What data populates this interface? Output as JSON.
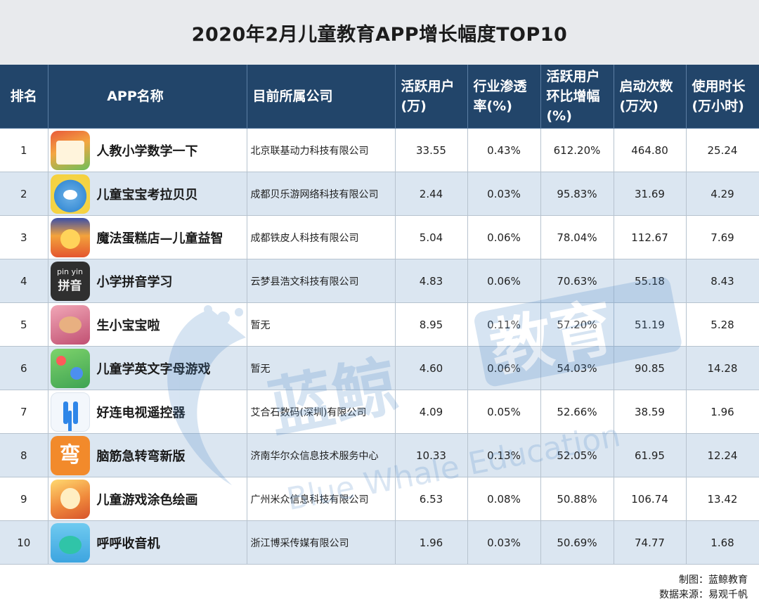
{
  "title": "2020年2月儿童教育APP增长幅度TOP10",
  "headers": {
    "rank": "排名",
    "app_name": "APP名称",
    "company": "目前所属公司",
    "active_users_l1": "活跃用户",
    "active_users_l2": "(万)",
    "penetration_l1": "行业渗透",
    "penetration_l2": "率(%)",
    "growth_l1": "活跃用户",
    "growth_l2": "环比增幅",
    "growth_l3": "(%)",
    "launches_l1": "启动次数",
    "launches_l2": "(万次)",
    "usage_l1": "使用时长",
    "usage_l2": "(万小时)"
  },
  "rows": [
    {
      "rank": "1",
      "app": "人教小学数学一下",
      "icon": "math-textbook-icon",
      "company": "北京联基动力科技有限公司",
      "active_users": "33.55",
      "penetration": "0.43%",
      "growth": "612.20%",
      "launches": "464.80",
      "usage": "25.24"
    },
    {
      "rank": "2",
      "app": "儿童宝宝考拉贝贝",
      "icon": "koala-cartoon-icon",
      "company": "成都贝乐游网络科技有限公司",
      "active_users": "2.44",
      "penetration": "0.03%",
      "growth": "95.83%",
      "launches": "31.69",
      "usage": "4.29"
    },
    {
      "rank": "3",
      "app": "魔法蛋糕店—儿童益智",
      "icon": "cake-shop-icon",
      "company": "成都铁皮人科技有限公司",
      "active_users": "5.04",
      "penetration": "0.06%",
      "growth": "78.04%",
      "launches": "112.67",
      "usage": "7.69"
    },
    {
      "rank": "4",
      "app": "小学拼音学习",
      "icon": "pinyin-blackboard-icon",
      "icon_text_top": "pin yin",
      "icon_text_main": "拼音",
      "company": "云梦县浩文科技有限公司",
      "active_users": "4.83",
      "penetration": "0.06%",
      "growth": "70.63%",
      "launches": "55.18",
      "usage": "8.43"
    },
    {
      "rank": "5",
      "app": "生小宝宝啦",
      "icon": "baby-icon",
      "company": "暂无",
      "active_users": "8.95",
      "penetration": "0.11%",
      "growth": "57.20%",
      "launches": "51.19",
      "usage": "5.28"
    },
    {
      "rank": "6",
      "app": "儿童学英文字母游戏",
      "icon": "alphabet-bubbles-icon",
      "company": "暂无",
      "active_users": "4.60",
      "penetration": "0.06%",
      "growth": "54.03%",
      "launches": "90.85",
      "usage": "14.28"
    },
    {
      "rank": "7",
      "app": "好连电视遥控器",
      "icon": "h-logo-icon",
      "company": "艾合石数码(深圳)有限公司",
      "active_users": "4.09",
      "penetration": "0.05%",
      "growth": "52.66%",
      "launches": "38.59",
      "usage": "1.96"
    },
    {
      "rank": "8",
      "app": "脑筋急转弯新版",
      "icon": "brain-teaser-icon",
      "icon_text_main": "弯",
      "company": "济南华尔众信息技术服务中心",
      "active_users": "10.33",
      "penetration": "0.13%",
      "growth": "52.05%",
      "launches": "61.95",
      "usage": "12.24"
    },
    {
      "rank": "9",
      "app": "儿童游戏涂色绘画",
      "icon": "coloring-cartoon-icon",
      "company": "广州米众信息科技有限公司",
      "active_users": "6.53",
      "penetration": "0.08%",
      "growth": "50.88%",
      "launches": "106.74",
      "usage": "13.42"
    },
    {
      "rank": "10",
      "app": "呼呼收音机",
      "icon": "radio-cartoon-icon",
      "company": "浙江博采传媒有限公司",
      "active_users": "1.96",
      "penetration": "0.03%",
      "growth": "50.69%",
      "launches": "74.77",
      "usage": "1.68"
    }
  ],
  "footer": {
    "made_by": "制图：蓝鲸教育",
    "source": "数据来源：易观千帆"
  },
  "watermark": {
    "cn_text": "蓝鲸",
    "cn_badge": "教育",
    "en_text": "Blue Whale Education"
  }
}
